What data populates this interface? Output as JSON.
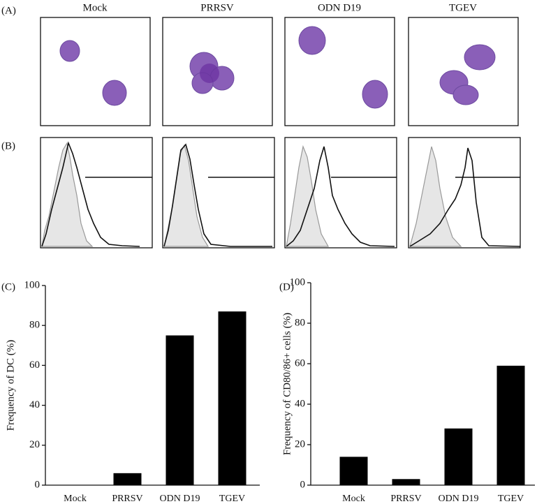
{
  "figure": {
    "panel_labels": [
      "(A)",
      "(B)",
      "(C)",
      "(D)"
    ],
    "column_titles": [
      "Mock",
      "PRRSV",
      "ODN D19",
      "TGEV"
    ]
  },
  "chart_data": [
    {
      "type": "bar",
      "ylabel": "Frequency of DC (%)",
      "categories": [
        "Mock",
        "PRRSV",
        "ODN D19",
        "TGEV"
      ],
      "values": [
        0,
        6,
        75,
        87
      ],
      "color": "#000000",
      "ylim": [
        0,
        100
      ],
      "yticks": [
        0,
        20,
        40,
        60,
        80,
        100
      ]
    },
    {
      "type": "bar",
      "ylabel": "Frequency of CD80/86+ cells (%)",
      "categories": [
        "Mock",
        "PRRSV",
        "ODN D19",
        "TGEV"
      ],
      "values": [
        14,
        3,
        28,
        59
      ],
      "color": "#000000",
      "ylim": [
        0,
        100
      ],
      "yticks": [
        0,
        20,
        40,
        60,
        80,
        100
      ]
    }
  ]
}
